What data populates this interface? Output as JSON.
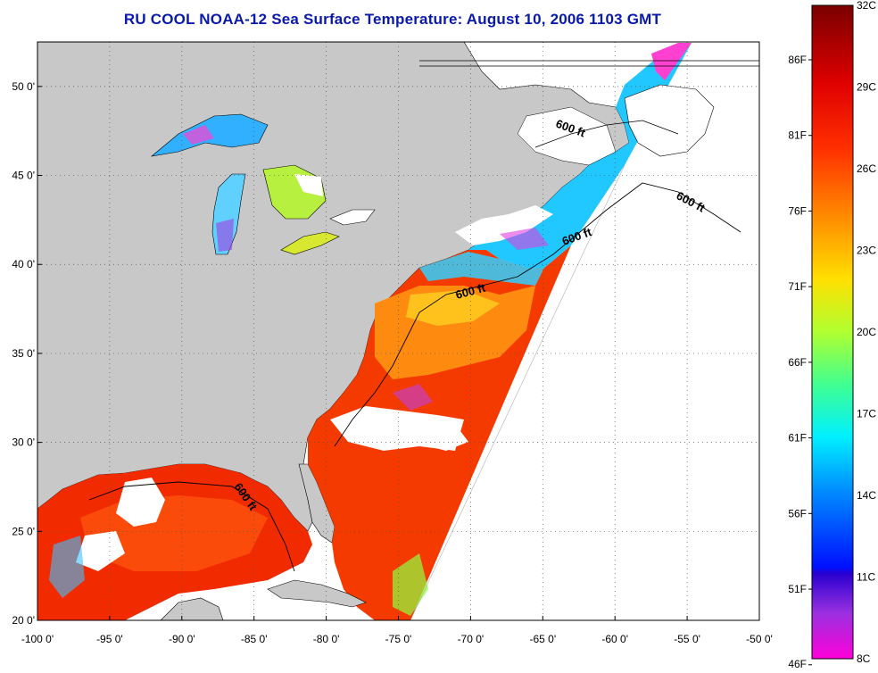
{
  "title": "RU COOL  NOAA-12  Sea Surface Temperature:  August 10, 2006 1103 GMT",
  "map": {
    "lon_range": [
      -100,
      -50
    ],
    "lat_range": [
      20,
      52.5
    ],
    "lon_ticks": [
      "-100 0'",
      "-95 0'",
      "-90 0'",
      "-85 0'",
      "-80 0'",
      "-75 0'",
      "-70 0'",
      "-65 0'",
      "-60 0'",
      "-55 0'",
      "-50 0'"
    ],
    "lat_ticks": [
      "20 0'",
      "25 0'",
      "30 0'",
      "35 0'",
      "40 0'",
      "45 0'",
      "50 0'"
    ],
    "lon_values": [
      -100,
      -95,
      -90,
      -85,
      -80,
      -75,
      -70,
      -65,
      -60,
      -55,
      -50
    ],
    "lat_values": [
      20,
      25,
      30,
      35,
      40,
      45,
      50
    ],
    "grid": "dotted",
    "land_color": "#c8c8c8",
    "no_data_color": "#ffffff",
    "isobath_labels": [
      "600 ft",
      "600 ft",
      "600 ft",
      "600 ft",
      "600 ft"
    ]
  },
  "colorbar": {
    "celsius": [
      "32C",
      "29C",
      "26C",
      "23C",
      "20C",
      "17C",
      "14C",
      "11C",
      "8C"
    ],
    "fahrenheit": [
      "86F",
      "81F",
      "76F",
      "71F",
      "66F",
      "61F",
      "56F",
      "51F",
      "46F"
    ],
    "fahrenheit_values": [
      86,
      81,
      76,
      71,
      66,
      61,
      56,
      51,
      46
    ],
    "range_c": [
      8,
      32
    ],
    "colors": [
      "#8b0000",
      "#ff0000",
      "#ff8000",
      "#ffff00",
      "#80ff40",
      "#00ffff",
      "#0080ff",
      "#0000ff",
      "#8000ff",
      "#ff00ff"
    ]
  }
}
